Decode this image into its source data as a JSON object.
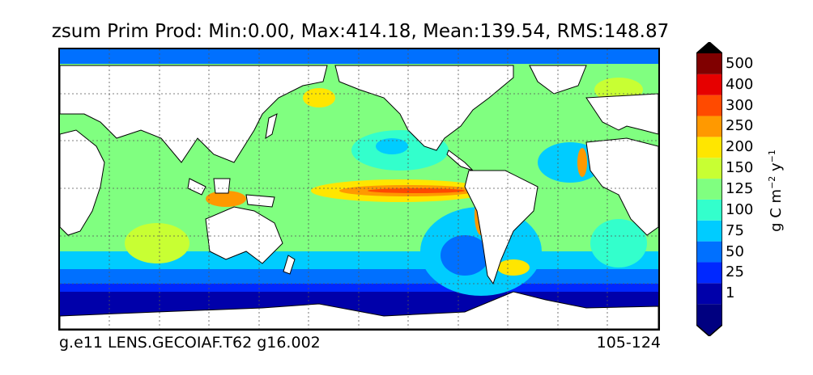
{
  "title": "zsum Prim Prod: Min:0.00, Max:414.18, Mean:139.54, RMS:148.87",
  "footer": {
    "left": "g.e11 LENS.GECOIAF.T62 g16.002",
    "right": "105-124"
  },
  "colorbar": {
    "unit_prefix": "g C m",
    "unit_m_exp": "−2",
    "unit_y": "y",
    "unit_y_exp": "−1",
    "levels": [
      {
        "label": "1",
        "color": "#0000aa"
      },
      {
        "label": "25",
        "color": "#0028ff"
      },
      {
        "label": "50",
        "color": "#0070ff"
      },
      {
        "label": "75",
        "color": "#00ccff"
      },
      {
        "label": "100",
        "color": "#33ffcc"
      },
      {
        "label": "125",
        "color": "#80ff80"
      },
      {
        "label": "150",
        "color": "#c8ff33"
      },
      {
        "label": "200",
        "color": "#ffe600"
      },
      {
        "label": "250",
        "color": "#ff9900"
      },
      {
        "label": "300",
        "color": "#ff4a00"
      },
      {
        "label": "400",
        "color": "#e60000"
      },
      {
        "label": "500",
        "color": "#800000"
      }
    ],
    "under_color": "#000080",
    "over_color": "#000000"
  },
  "map": {
    "land_color": "#ffffff",
    "coastline_color": "#000000",
    "gridline_style": "dotted"
  }
}
